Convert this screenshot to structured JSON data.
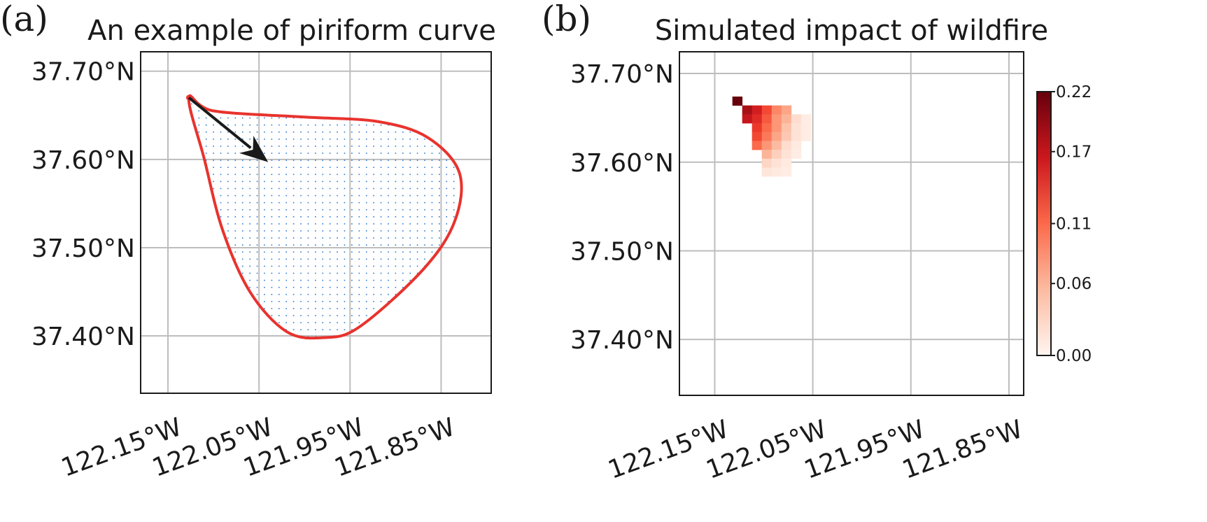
{
  "chart_data": [
    {
      "type": "scatter",
      "panel_label": "(a)",
      "title": "An example of piriform curve",
      "x_ticks": [
        -122.15,
        -122.05,
        -121.95,
        -121.85
      ],
      "x_tick_labels": [
        "122.15°W",
        "122.05°W",
        "121.95°W",
        "121.85°W"
      ],
      "y_ticks": [
        37.4,
        37.5,
        37.6,
        37.7
      ],
      "y_tick_labels": [
        "37.40°N",
        "37.50°N",
        "37.60°N",
        "37.70°N"
      ],
      "xlim": [
        -122.18,
        -121.795
      ],
      "ylim": [
        37.335,
        37.722
      ],
      "grid": true,
      "curve": {
        "color": "#e8332e",
        "points": [
          [
            -122.127,
            37.67
          ],
          [
            -122.1,
            37.655
          ],
          [
            -122.0,
            37.648
          ],
          [
            -121.92,
            37.643
          ],
          [
            -121.865,
            37.625
          ],
          [
            -121.83,
            37.585
          ],
          [
            -121.835,
            37.53
          ],
          [
            -121.87,
            37.475
          ],
          [
            -121.94,
            37.41
          ],
          [
            -121.98,
            37.398
          ],
          [
            -122.02,
            37.405
          ],
          [
            -122.06,
            37.45
          ],
          [
            -122.09,
            37.52
          ],
          [
            -122.11,
            37.6
          ],
          [
            -122.127,
            37.67
          ]
        ]
      },
      "arrow": {
        "color": "#1a1a1a",
        "from": [
          -122.127,
          37.67
        ],
        "to": [
          -122.04,
          37.597
        ]
      },
      "point_grid": {
        "color": "#2a7bd4",
        "step": 0.008
      }
    },
    {
      "type": "heatmap",
      "panel_label": "(b)",
      "title": "Simulated impact of wildfire",
      "x_ticks": [
        -122.15,
        -122.05,
        -121.95,
        -121.85
      ],
      "x_tick_labels": [
        "122.15°W",
        "122.05°W",
        "121.95°W",
        "121.85°W"
      ],
      "y_ticks": [
        37.4,
        37.5,
        37.6,
        37.7
      ],
      "y_tick_labels": [
        "37.40°N",
        "37.50°N",
        "37.60°N",
        "37.70°N"
      ],
      "xlim": [
        -122.186,
        -121.835
      ],
      "ylim": [
        37.337,
        37.7245
      ],
      "grid": true,
      "cell_size": 0.01,
      "colormap": "Reds",
      "vmin": 0.0,
      "vmax": 0.22,
      "colorbar_ticks": [
        "0.00",
        "0.06",
        "0.11",
        "0.17",
        "0.22"
      ],
      "colorbar_tick_values": [
        0.0,
        0.06,
        0.11,
        0.17,
        0.22
      ],
      "cells": [
        [
          -122.127,
          37.669,
          0.22
        ],
        [
          -122.117,
          37.659,
          0.19
        ],
        [
          -122.107,
          37.659,
          0.16
        ],
        [
          -122.097,
          37.659,
          0.13
        ],
        [
          -122.087,
          37.659,
          0.09
        ],
        [
          -122.077,
          37.659,
          0.07
        ],
        [
          -122.117,
          37.649,
          0.17
        ],
        [
          -122.107,
          37.649,
          0.15
        ],
        [
          -122.097,
          37.649,
          0.12
        ],
        [
          -122.087,
          37.649,
          0.08
        ],
        [
          -122.077,
          37.649,
          0.06
        ],
        [
          -122.067,
          37.649,
          0.03
        ],
        [
          -122.057,
          37.649,
          0.01
        ],
        [
          -122.107,
          37.639,
          0.14
        ],
        [
          -122.097,
          37.639,
          0.11
        ],
        [
          -122.087,
          37.639,
          0.08
        ],
        [
          -122.077,
          37.639,
          0.05
        ],
        [
          -122.067,
          37.639,
          0.025
        ],
        [
          -122.057,
          37.639,
          0.012
        ],
        [
          -122.107,
          37.629,
          0.13
        ],
        [
          -122.097,
          37.629,
          0.1
        ],
        [
          -122.087,
          37.629,
          0.07
        ],
        [
          -122.077,
          37.629,
          0.045
        ],
        [
          -122.067,
          37.629,
          0.025
        ],
        [
          -122.057,
          37.629,
          0.01
        ],
        [
          -122.107,
          37.619,
          0.11
        ],
        [
          -122.097,
          37.619,
          0.08
        ],
        [
          -122.087,
          37.619,
          0.055
        ],
        [
          -122.077,
          37.619,
          0.03
        ],
        [
          -122.067,
          37.619,
          0.015
        ],
        [
          -122.097,
          37.609,
          0.06
        ],
        [
          -122.087,
          37.609,
          0.04
        ],
        [
          -122.077,
          37.609,
          0.025
        ],
        [
          -122.067,
          37.609,
          0.01
        ],
        [
          -122.097,
          37.599,
          0.035
        ],
        [
          -122.087,
          37.599,
          0.025
        ],
        [
          -122.077,
          37.599,
          0.015
        ],
        [
          -122.097,
          37.589,
          0.02
        ],
        [
          -122.087,
          37.589,
          0.015
        ],
        [
          -122.077,
          37.589,
          0.01
        ]
      ]
    }
  ]
}
